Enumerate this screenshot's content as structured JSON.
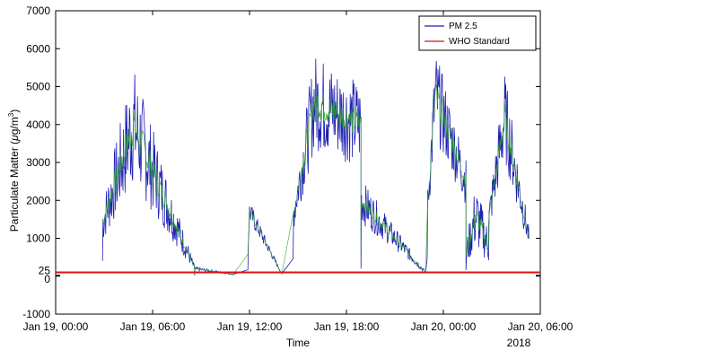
{
  "chart_data": {
    "type": "line",
    "xlabel": "Time",
    "ylabel_main": "Particulate Matter (",
    "ylabel_mu": "μ",
    "ylabel_unit": "g/m",
    "ylabel_sup": "3",
    "ylabel_close": ")",
    "ylim": [
      -1000,
      7000
    ],
    "xlim_hours": [
      0,
      30
    ],
    "x_ticks": [
      {
        "hour": 0,
        "label": "Jan 19, 00:00"
      },
      {
        "hour": 6,
        "label": "Jan 19, 06:00"
      },
      {
        "hour": 12,
        "label": "Jan 19, 12:00"
      },
      {
        "hour": 18,
        "label": "Jan 19, 18:00"
      },
      {
        "hour": 24,
        "label": "Jan 20, 00:00"
      },
      {
        "hour": 30,
        "label": "Jan 20, 06:00"
      }
    ],
    "x_axis_year": "2018",
    "y_ticks": [
      {
        "value": -1000,
        "label": "-1000"
      },
      {
        "value": 0,
        "label": "0"
      },
      {
        "value": 25,
        "label": "25"
      },
      {
        "value": 1000,
        "label": "1000"
      },
      {
        "value": 2000,
        "label": "2000"
      },
      {
        "value": 3000,
        "label": "3000"
      },
      {
        "value": 4000,
        "label": "4000"
      },
      {
        "value": 5000,
        "label": "5000"
      },
      {
        "value": 6000,
        "label": "6000"
      },
      {
        "value": 7000,
        "label": "7000"
      }
    ],
    "grid": false,
    "legend_position": "top-right",
    "series": [
      {
        "name": "PM 2.5",
        "color": "#1f1fb4",
        "smooth_color": "#22a022",
        "episodes": [
          {
            "start": 2.9,
            "end": 8.6,
            "base": 4000,
            "amp": 1600,
            "peak_at": 4.8,
            "decay_to": 200
          },
          {
            "start": 8.6,
            "end": 11.0,
            "base": 200,
            "amp": 50,
            "peak_at": 8.6,
            "decay_to": 50
          },
          {
            "start": 11.9,
            "end": 14.0,
            "base": 1700,
            "amp": 300,
            "peak_at": 12.0,
            "decay_to": 60
          },
          {
            "start": 14.7,
            "end": 18.9,
            "base": 4600,
            "amp": 1300,
            "peak_at": 16.0,
            "decay_to": 4000
          },
          {
            "start": 18.9,
            "end": 22.9,
            "base": 2000,
            "amp": 600,
            "peak_at": 18.9,
            "decay_to": 100
          },
          {
            "start": 23.0,
            "end": 25.4,
            "base": 4800,
            "amp": 1200,
            "peak_at": 23.5,
            "decay_to": 2500
          },
          {
            "start": 25.4,
            "end": 26.8,
            "base": 1600,
            "amp": 900,
            "peak_at": 26.0,
            "decay_to": 800
          },
          {
            "start": 26.8,
            "end": 29.3,
            "base": 4200,
            "amp": 1200,
            "peak_at": 27.8,
            "decay_to": 1000
          }
        ]
      },
      {
        "name": "WHO Standard",
        "color": "#e01010",
        "value": 100
      }
    ]
  }
}
